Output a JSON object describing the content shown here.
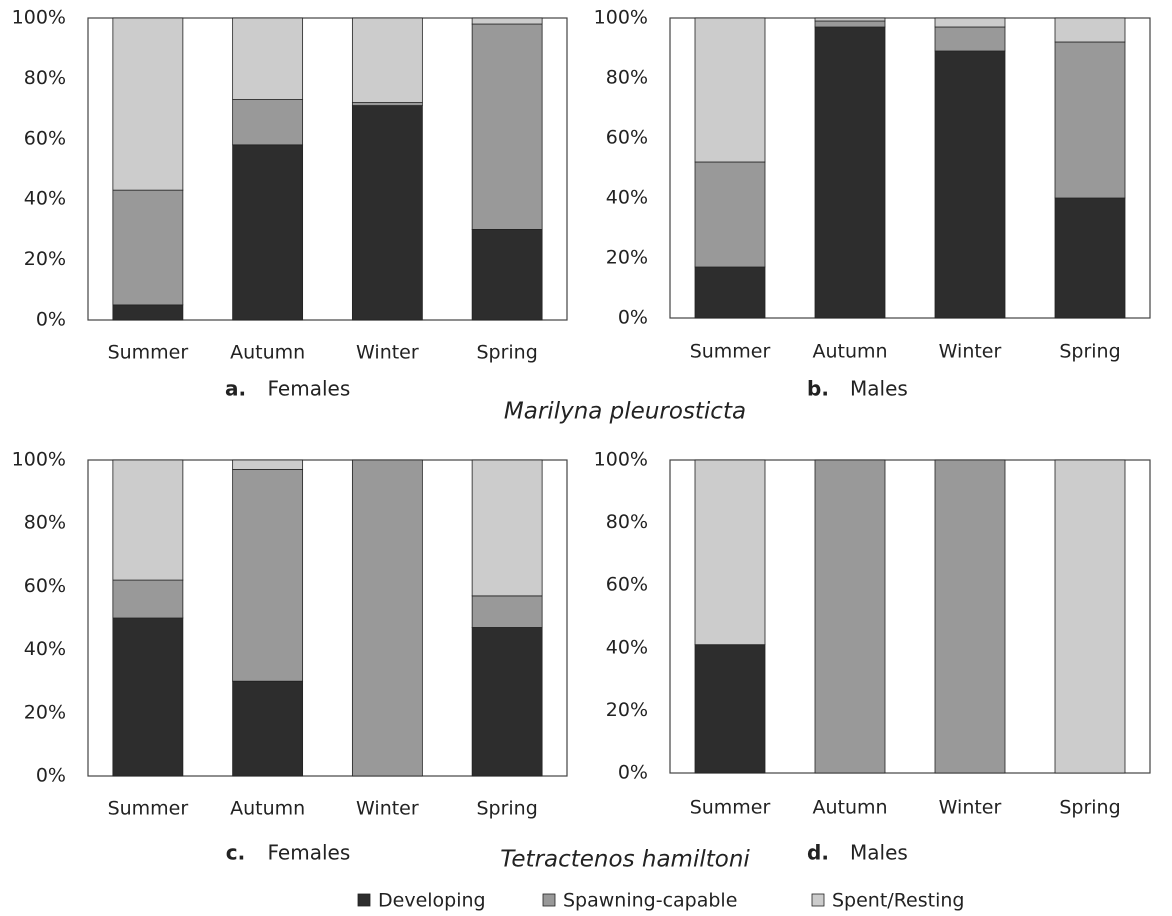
{
  "chart_data": [
    {
      "type": "bar",
      "stacked": true,
      "label": "a.",
      "title": "Females",
      "categories": [
        "Summer",
        "Autumn",
        "Winter",
        "Spring"
      ],
      "series": [
        {
          "values": [
            5,
            58,
            71,
            30
          ]
        },
        {
          "values": [
            38,
            15,
            1,
            68
          ]
        },
        {
          "values": [
            57,
            27,
            28,
            2
          ]
        }
      ],
      "ylim": [
        0,
        100
      ],
      "yticks": [
        {
          "value": 0,
          "label": "0%"
        },
        {
          "value": 20,
          "label": "20%"
        },
        {
          "value": 40,
          "label": "40%"
        },
        {
          "value": 60,
          "label": "60%"
        },
        {
          "value": 80,
          "label": "80%"
        },
        {
          "value": 100,
          "label": "100%"
        }
      ]
    },
    {
      "type": "bar",
      "stacked": true,
      "label": "b.",
      "title": "Males",
      "categories": [
        "Summer",
        "Autumn",
        "Winter",
        "Spring"
      ],
      "series": [
        {
          "values": [
            17,
            97,
            89,
            40
          ]
        },
        {
          "values": [
            35,
            2,
            8,
            52
          ]
        },
        {
          "values": [
            48,
            1,
            3,
            8
          ]
        }
      ],
      "ylim": [
        0,
        100
      ],
      "yticks": [
        {
          "value": 0,
          "label": "0%"
        },
        {
          "value": 20,
          "label": "20%"
        },
        {
          "value": 40,
          "label": "40%"
        },
        {
          "value": 60,
          "label": "60%"
        },
        {
          "value": 80,
          "label": "80%"
        },
        {
          "value": 100,
          "label": "100%"
        }
      ]
    },
    {
      "type": "bar",
      "stacked": true,
      "label": "c.",
      "title": "Females",
      "categories": [
        "Summer",
        "Autumn",
        "Winter",
        "Spring"
      ],
      "series": [
        {
          "values": [
            50,
            30,
            0,
            47
          ]
        },
        {
          "values": [
            12,
            67,
            100,
            10
          ]
        },
        {
          "values": [
            38,
            3,
            0,
            43
          ]
        }
      ],
      "ylim": [
        0,
        100
      ],
      "yticks": [
        {
          "value": 0,
          "label": "0%"
        },
        {
          "value": 20,
          "label": "20%"
        },
        {
          "value": 40,
          "label": "40%"
        },
        {
          "value": 60,
          "label": "60%"
        },
        {
          "value": 80,
          "label": "80%"
        },
        {
          "value": 100,
          "label": "100%"
        }
      ]
    },
    {
      "type": "bar",
      "stacked": true,
      "label": "d.",
      "title": "Males",
      "categories": [
        "Summer",
        "Autumn",
        "Winter",
        "Spring"
      ],
      "series": [
        {
          "values": [
            41,
            0,
            0,
            0
          ]
        },
        {
          "values": [
            0,
            100,
            100,
            0
          ]
        },
        {
          "values": [
            59,
            0,
            0,
            100
          ]
        }
      ],
      "ylim": [
        0,
        100
      ],
      "yticks": [
        {
          "value": 0,
          "label": "0%"
        },
        {
          "value": 20,
          "label": "20%"
        },
        {
          "value": 40,
          "label": "40%"
        },
        {
          "value": 60,
          "label": "60%"
        },
        {
          "value": 80,
          "label": "80%"
        },
        {
          "value": 100,
          "label": "100%"
        }
      ]
    }
  ],
  "species": [
    "Marilyna pleurosticta",
    "Tetractenos hamiltoni"
  ],
  "legend": [
    {
      "name": "Developing",
      "color": "#2d2d2d"
    },
    {
      "name": "Spawning-capable",
      "color": "#999999"
    },
    {
      "name": "Spent/Resting",
      "color": "#cccccc"
    }
  ]
}
